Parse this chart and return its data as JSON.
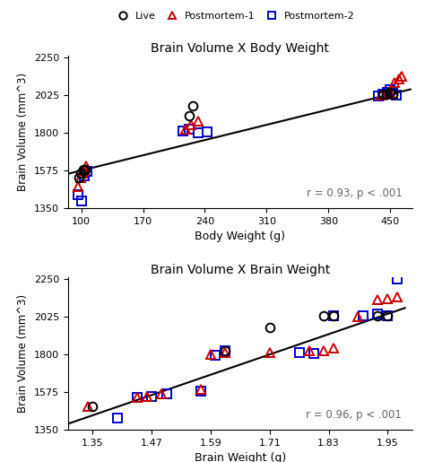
{
  "title1": "Brain Volume X Body Weight",
  "title2": "Brain Volume X Brain Weight",
  "xlabel1": "Body Weight (g)",
  "xlabel2": "Brain Weight (g)",
  "ylabel": "Brain Volume (mm^3)",
  "corr1": "r = 0.93, p < .001",
  "corr2": "r = 0.96, p < .001",
  "plot1": {
    "live_x": [
      97,
      99,
      102,
      104,
      222,
      226,
      442,
      446,
      450,
      453
    ],
    "live_y": [
      1530,
      1560,
      1580,
      1580,
      1900,
      1960,
      2030,
      2030,
      2038,
      2028
    ],
    "pm1_x": [
      96,
      99,
      101,
      103,
      105,
      218,
      224,
      232,
      440,
      445,
      450,
      455,
      460,
      463
    ],
    "pm1_y": [
      1480,
      1530,
      1560,
      1575,
      1600,
      1820,
      1850,
      1870,
      2025,
      2030,
      2035,
      2100,
      2120,
      2135
    ],
    "pm2_x": [
      96,
      100,
      103,
      107,
      215,
      222,
      232,
      243,
      437,
      442,
      447,
      450,
      453,
      457
    ],
    "pm2_y": [
      1430,
      1395,
      1545,
      1570,
      1810,
      1820,
      1800,
      1802,
      2020,
      2028,
      2040,
      2055,
      2035,
      2025
    ],
    "line_x": [
      85,
      473
    ],
    "line_y": [
      1555,
      2058
    ]
  },
  "plot2": {
    "live_x": [
      1.35,
      1.62,
      1.71,
      1.82,
      1.84,
      1.93,
      1.95
    ],
    "live_y": [
      1490,
      1820,
      1960,
      2028,
      2030,
      2028,
      2030
    ],
    "pm1_x": [
      1.34,
      1.44,
      1.46,
      1.49,
      1.57,
      1.59,
      1.62,
      1.71,
      1.79,
      1.82,
      1.84,
      1.89,
      1.93,
      1.95,
      1.97
    ],
    "pm1_y": [
      1490,
      1540,
      1550,
      1565,
      1590,
      1800,
      1810,
      1810,
      1820,
      1820,
      1835,
      2025,
      2125,
      2130,
      2140
    ],
    "pm2_x": [
      1.4,
      1.44,
      1.47,
      1.5,
      1.57,
      1.6,
      1.62,
      1.77,
      1.8,
      1.84,
      1.9,
      1.93,
      1.95,
      1.97
    ],
    "pm2_y": [
      1420,
      1540,
      1550,
      1565,
      1580,
      1792,
      1822,
      1812,
      1802,
      2028,
      2030,
      2038,
      2028,
      2245
    ],
    "line_x": [
      1.29,
      1.985
    ],
    "line_y": [
      1375,
      2075
    ]
  },
  "ylim": [
    1350,
    2260
  ],
  "yticks": [
    1350,
    1575,
    1800,
    2025,
    2250
  ],
  "xlim1": [
    85,
    475
  ],
  "xticks1": [
    100,
    170,
    240,
    310,
    380,
    450
  ],
  "xlim2": [
    1.3,
    2.0
  ],
  "xticks2": [
    1.35,
    1.47,
    1.59,
    1.71,
    1.83,
    1.95
  ],
  "live_color": "black",
  "pm1_color": "#cc0000",
  "pm2_color": "#0000cc",
  "line_color": "black",
  "marker_size": 7,
  "line_width": 1.5,
  "corr_color": "#666666"
}
